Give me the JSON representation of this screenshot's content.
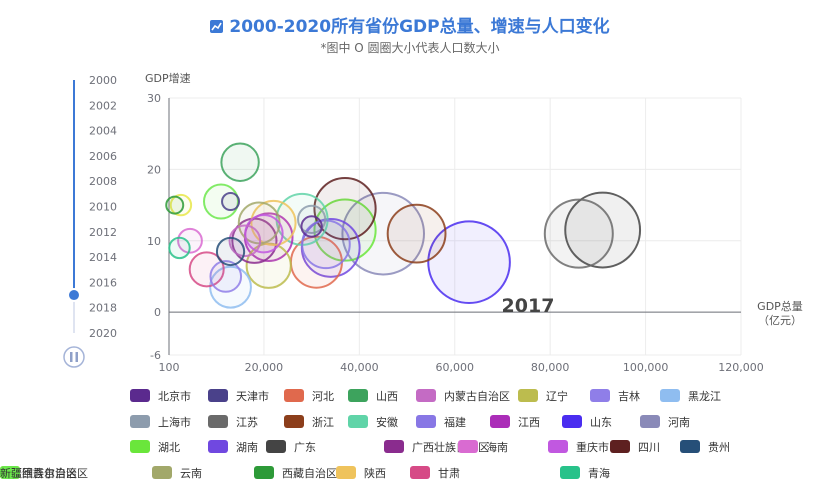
{
  "header": {
    "title": "2000-2020所有省份GDP总量、增速与人口变化",
    "subtitle": "*图中 O 圆圈大小代表人口数大小",
    "title_icon": "line-chart-icon"
  },
  "timeline": {
    "years": [
      "2000",
      "2002",
      "2004",
      "2006",
      "2008",
      "2010",
      "2012",
      "2014",
      "2016",
      "2018",
      "2020"
    ],
    "current_year": "2017",
    "progress": 0.85,
    "play_icon": "pause-icon",
    "accent": "#3c79d6"
  },
  "chart_data": {
    "type": "scatter",
    "title": "2000-2020所有省份GDP总量、增速与人口变化",
    "subtitle": "*图中 O 圆圈大小代表人口数大小",
    "xlabel": "GDP总量\n（亿元）",
    "ylabel": "GDP增速",
    "xlim": [
      100,
      120000
    ],
    "ylim": [
      -6,
      30
    ],
    "x_ticks": [
      "100",
      "20,000",
      "40,000",
      "60,000",
      "80,000",
      "100,000",
      "120,000"
    ],
    "y_ticks": [
      "-6",
      "0",
      "10",
      "20",
      "30"
    ],
    "grid": true,
    "legend_position": "bottom",
    "year_label": "2017",
    "series": [
      {
        "name": "北京市",
        "color": "#5b2a8e",
        "x": 30000,
        "y": 12.0,
        "size": 6
      },
      {
        "name": "天津市",
        "color": "#4a418a",
        "x": 13000,
        "y": 15.5,
        "size": 5
      },
      {
        "name": "河北",
        "color": "#e0694d",
        "x": 31000,
        "y": 7.0,
        "size": 15
      },
      {
        "name": "山西",
        "color": "#3da35d",
        "x": 15000,
        "y": 21.0,
        "size": 11
      },
      {
        "name": "内蒙古自治区",
        "color": "#c46bc4",
        "x": 16000,
        "y": 10.0,
        "size": 9
      },
      {
        "name": "辽宁",
        "color": "#bcbc4e",
        "x": 21000,
        "y": 6.5,
        "size": 13
      },
      {
        "name": "吉林",
        "color": "#8f7ee8",
        "x": 12000,
        "y": 5.0,
        "size": 9
      },
      {
        "name": "黑龙江",
        "color": "#8fbdf0",
        "x": 13000,
        "y": 3.5,
        "size": 12
      },
      {
        "name": "上海市",
        "color": "#8d9cad",
        "x": 30000,
        "y": 13.0,
        "size": 8
      },
      {
        "name": "江苏",
        "color": "#6a6a6a",
        "x": 86000,
        "y": 11.0,
        "size": 20
      },
      {
        "name": "浙江",
        "color": "#8c3e1b",
        "x": 52000,
        "y": 11.0,
        "size": 17
      },
      {
        "name": "安徽",
        "color": "#60d4a8",
        "x": 28000,
        "y": 13.0,
        "size": 15
      },
      {
        "name": "福建",
        "color": "#8877e5",
        "x": 33000,
        "y": 9.5,
        "size": 14
      },
      {
        "name": "江西",
        "color": "#ab2db8",
        "x": 21000,
        "y": 10.5,
        "size": 14
      },
      {
        "name": "山东",
        "color": "#4a2df0",
        "x": 63000,
        "y": 7.0,
        "size": 24
      },
      {
        "name": "河南",
        "color": "#8a8ab8",
        "x": 45000,
        "y": 11.0,
        "size": 24
      },
      {
        "name": "湖北",
        "color": "#6ae63b",
        "x": 37000,
        "y": 11.5,
        "size": 18
      },
      {
        "name": "湖南",
        "color": "#7048e0",
        "x": 34000,
        "y": 9.0,
        "size": 17
      },
      {
        "name": "广东",
        "color": "#444444",
        "x": 91000,
        "y": 11.5,
        "size": 22
      },
      {
        "name": "广西壮族自治区",
        "color": "#8a2c8e",
        "x": 18000,
        "y": 10.0,
        "size": 13
      },
      {
        "name": "海南",
        "color": "#d96bd1",
        "x": 4500,
        "y": 10.0,
        "size": 7
      },
      {
        "name": "重庆市",
        "color": "#c158e0",
        "x": 20000,
        "y": 11.0,
        "size": 11
      },
      {
        "name": "四川",
        "color": "#5e2020",
        "x": 37000,
        "y": 14.5,
        "size": 18
      },
      {
        "name": "贵州",
        "color": "#264f78",
        "x": 13000,
        "y": 8.5,
        "size": 8
      },
      {
        "name": "云南",
        "color": "#a2a86a",
        "x": 19000,
        "y": 12.5,
        "size": 12
      },
      {
        "name": "西藏自治区",
        "color": "#2d9a38",
        "x": 1300,
        "y": 15.0,
        "size": 5
      },
      {
        "name": "陕西",
        "color": "#efc35c",
        "x": 22000,
        "y": 12.5,
        "size": 13
      },
      {
        "name": "甘肃",
        "color": "#d64a86",
        "x": 8000,
        "y": 6.0,
        "size": 10
      },
      {
        "name": "青海",
        "color": "#28c28a",
        "x": 2300,
        "y": 9.0,
        "size": 6
      },
      {
        "name": "宁夏回族自治区",
        "color": "#e8e84a",
        "x": 2600,
        "y": 15.0,
        "size": 6
      },
      {
        "name": "新疆维吾尔自治区",
        "color": "#6ce84c",
        "x": 11000,
        "y": 15.5,
        "size": 10
      }
    ]
  }
}
